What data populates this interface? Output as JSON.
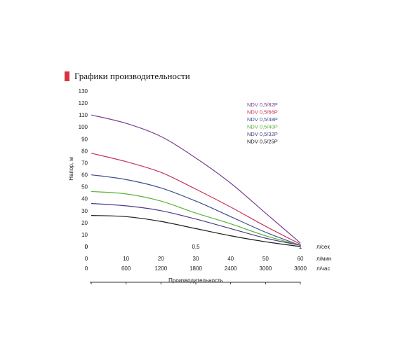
{
  "header": {
    "title": "Графики производительности"
  },
  "chart_data": {
    "type": "line",
    "ylabel": "Напор, м",
    "xlabel": "Производительность",
    "ylim": [
      0,
      130
    ],
    "yticks": [
      0,
      10,
      20,
      30,
      40,
      50,
      60,
      70,
      80,
      90,
      100,
      110,
      120,
      130
    ],
    "grid": false,
    "legend_position": "top-right",
    "x_axes": [
      {
        "unit": "л/сек",
        "range": [
          0,
          1
        ],
        "ticks": [
          {
            "value": 0,
            "label": "0"
          },
          {
            "value": 0.5,
            "label": "0,5"
          },
          {
            "value": 1,
            "label": "1"
          }
        ]
      },
      {
        "unit": "л/мин",
        "range": [
          0,
          60
        ],
        "ticks": [
          {
            "value": 0,
            "label": "0"
          },
          {
            "value": 10,
            "label": "10"
          },
          {
            "value": 20,
            "label": "20"
          },
          {
            "value": 30,
            "label": "30"
          },
          {
            "value": 40,
            "label": "40"
          },
          {
            "value": 50,
            "label": "50"
          },
          {
            "value": 60,
            "label": "60"
          }
        ]
      },
      {
        "unit": "л/час",
        "range": [
          0,
          3600
        ],
        "ticks": [
          {
            "value": 0,
            "label": "0"
          },
          {
            "value": 600,
            "label": "600"
          },
          {
            "value": 1200,
            "label": "1200"
          },
          {
            "value": 1800,
            "label": "1800"
          },
          {
            "value": 2400,
            "label": "2400"
          },
          {
            "value": 3000,
            "label": "3000"
          },
          {
            "value": 3600,
            "label": "3600"
          }
        ]
      }
    ],
    "x_values_unit": "л/мин",
    "x": [
      0,
      10,
      20,
      30,
      40,
      50,
      60
    ],
    "series": [
      {
        "name": "NDV 0,5/82P",
        "color": "#7a3f8f",
        "values": [
          110,
          103,
          92,
          74,
          53,
          28,
          3
        ]
      },
      {
        "name": "NDV 0,5/66P",
        "color": "#c8325a",
        "values": [
          78,
          71,
          62,
          48,
          33,
          17,
          2
        ]
      },
      {
        "name": "NDV 0,5/48P",
        "color": "#3a4f8f",
        "values": [
          60,
          56,
          49,
          38,
          25,
          12,
          1
        ]
      },
      {
        "name": "NDV 0,5/40P",
        "color": "#5ab336",
        "values": [
          46,
          44,
          38,
          28,
          19,
          9,
          1
        ]
      },
      {
        "name": "NDV 0,5/32P",
        "color": "#4a3a86",
        "values": [
          36,
          34,
          30,
          23,
          15,
          7,
          1
        ]
      },
      {
        "name": "NDV 0,5/25P",
        "color": "#1a1a1a",
        "values": [
          26,
          25,
          21,
          15,
          9,
          4,
          0
        ]
      }
    ]
  }
}
